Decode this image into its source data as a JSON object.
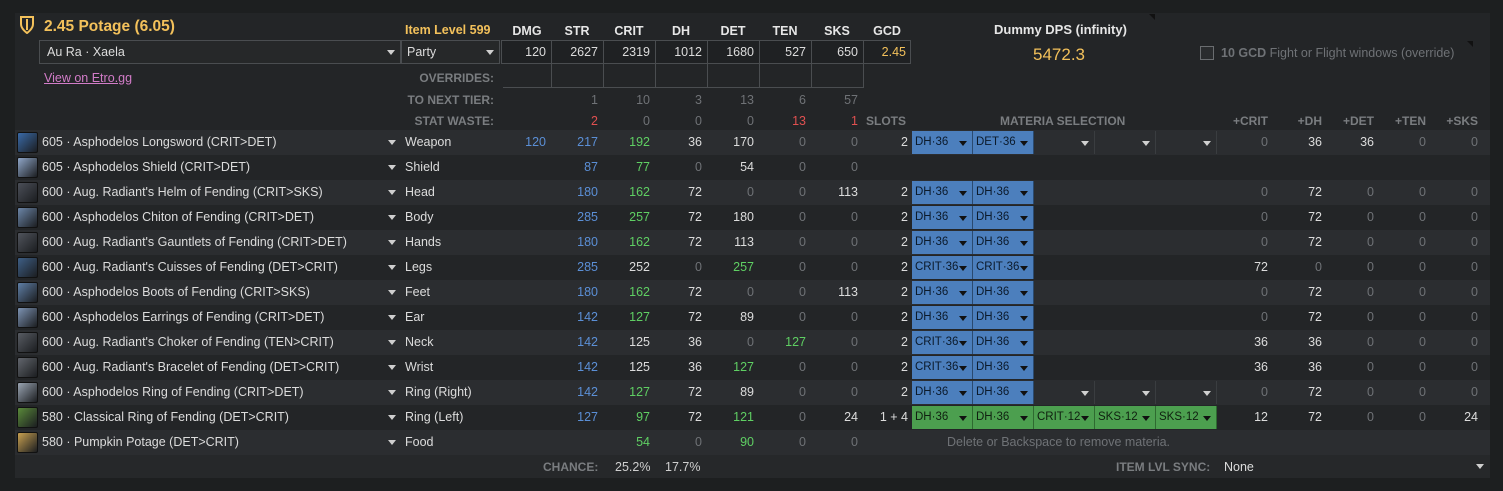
{
  "header": {
    "title": "2.45 Potage (6.05)",
    "race": "Au Ra · Xaela",
    "link": "View on Etro.gg",
    "item_level": "Item Level 599",
    "party": "Party",
    "stat_headers": [
      "DMG",
      "STR",
      "CRIT",
      "DH",
      "DET",
      "TEN",
      "SKS",
      "GCD"
    ],
    "totals": [
      "120",
      "2627",
      "2319",
      "1012",
      "1680",
      "527",
      "650",
      "2.45"
    ],
    "overrides_label": "OVERRIDES:",
    "next_tier_label": "TO NEXT TIER:",
    "next_tier": [
      "1",
      "10",
      "3",
      "13",
      "6",
      "57"
    ],
    "waste_label": "STAT WASTE:",
    "waste": [
      "2",
      "0",
      "0",
      "0",
      "13",
      "1"
    ],
    "slots_label": "SLOTS",
    "materia_label": "MATERIA SELECTION",
    "materia_headers": [
      "+CRIT",
      "+DH",
      "+DET",
      "+TEN",
      "+SKS"
    ]
  },
  "dps": {
    "title": "Dummy DPS (infinity)",
    "value": "5472.3",
    "gcd_label": "10 GCD",
    "gcd_desc": "Fight or Flight windows (override)"
  },
  "gear": [
    {
      "name": "605 · Asphodelos Longsword (CRIT>DET)",
      "slot": "Weapon",
      "dmg": "120",
      "str": "217",
      "crit": "192",
      "dh": "36",
      "det": "170",
      "ten": "0",
      "sks": "0",
      "slots": "2",
      "materia": [
        "DH·36",
        "DET·36",
        "",
        "",
        ""
      ],
      "mtype": [
        "blue",
        "blue",
        "empty",
        "empty",
        "empty"
      ],
      "plus": [
        "0",
        "36",
        "36",
        "0",
        "0"
      ],
      "icon": "#3a6aa8"
    },
    {
      "name": "605 · Asphodelos Shield (CRIT>DET)",
      "slot": "Shield",
      "dmg": "",
      "str": "87",
      "crit": "77",
      "dh": "0",
      "det": "54",
      "ten": "0",
      "sks": "0",
      "slots": "",
      "materia": [],
      "mtype": [],
      "plus": [],
      "icon": "#8fa6c8"
    },
    {
      "name": "600 · Aug. Radiant's Helm of Fending (CRIT>SKS)",
      "slot": "Head",
      "dmg": "",
      "str": "180",
      "crit": "162",
      "dh": "72",
      "det": "0",
      "ten": "0",
      "sks": "113",
      "slots": "2",
      "materia": [
        "DH·36",
        "DH·36"
      ],
      "mtype": [
        "blue",
        "blue"
      ],
      "plus": [
        "0",
        "72",
        "0",
        "0",
        "0"
      ],
      "icon": "#4b4f58"
    },
    {
      "name": "600 · Asphodelos Chiton of Fending (CRIT>DET)",
      "slot": "Body",
      "dmg": "",
      "str": "285",
      "crit": "257",
      "dh": "72",
      "det": "180",
      "ten": "0",
      "sks": "0",
      "slots": "2",
      "materia": [
        "DH·36",
        "DH·36"
      ],
      "mtype": [
        "blue",
        "blue"
      ],
      "plus": [
        "0",
        "72",
        "0",
        "0",
        "0"
      ],
      "icon": "#6c86a8"
    },
    {
      "name": "600 · Aug. Radiant's Gauntlets of Fending (CRIT>DET)",
      "slot": "Hands",
      "dmg": "",
      "str": "180",
      "crit": "162",
      "dh": "72",
      "det": "113",
      "ten": "0",
      "sks": "0",
      "slots": "2",
      "materia": [
        "DH·36",
        "DH·36"
      ],
      "mtype": [
        "blue",
        "blue"
      ],
      "plus": [
        "0",
        "72",
        "0",
        "0",
        "0"
      ],
      "icon": "#50545c"
    },
    {
      "name": "600 · Aug. Radiant's Cuisses of Fending (DET>CRIT)",
      "slot": "Legs",
      "dmg": "",
      "str": "285",
      "crit": "252",
      "dh": "0",
      "det": "257",
      "ten": "0",
      "sks": "0",
      "slots": "2",
      "materia": [
        "CRIT·36",
        "CRIT·36"
      ],
      "mtype": [
        "blue",
        "blue"
      ],
      "plus": [
        "72",
        "0",
        "0",
        "0",
        "0"
      ],
      "icon": "#3e5f86"
    },
    {
      "name": "600 · Asphodelos Boots of Fending (CRIT>SKS)",
      "slot": "Feet",
      "dmg": "",
      "str": "180",
      "crit": "162",
      "dh": "72",
      "det": "0",
      "ten": "0",
      "sks": "113",
      "slots": "2",
      "materia": [
        "DH·36",
        "DH·36"
      ],
      "mtype": [
        "blue",
        "blue"
      ],
      "plus": [
        "0",
        "72",
        "0",
        "0",
        "0"
      ],
      "icon": "#5f7fa6"
    },
    {
      "name": "600 · Asphodelos Earrings of Fending (CRIT>DET)",
      "slot": "Ear",
      "dmg": "",
      "str": "142",
      "crit": "127",
      "dh": "72",
      "det": "89",
      "ten": "0",
      "sks": "0",
      "slots": "2",
      "materia": [
        "DH·36",
        "DH·36"
      ],
      "mtype": [
        "blue",
        "blue"
      ],
      "plus": [
        "0",
        "72",
        "0",
        "0",
        "0"
      ],
      "icon": "#7d93b3"
    },
    {
      "name": "600 · Aug. Radiant's Choker of Fending (TEN>CRIT)",
      "slot": "Neck",
      "dmg": "",
      "str": "142",
      "crit": "125",
      "dh": "36",
      "det": "0",
      "ten": "127",
      "sks": "0",
      "slots": "2",
      "materia": [
        "CRIT·36",
        "DH·36"
      ],
      "mtype": [
        "blue",
        "blue"
      ],
      "plus": [
        "36",
        "36",
        "0",
        "0",
        "0"
      ],
      "icon": "#585c63"
    },
    {
      "name": "600 · Aug. Radiant's Bracelet of Fending (DET>CRIT)",
      "slot": "Wrist",
      "dmg": "",
      "str": "142",
      "crit": "125",
      "dh": "36",
      "det": "127",
      "ten": "0",
      "sks": "0",
      "slots": "2",
      "materia": [
        "CRIT·36",
        "DH·36"
      ],
      "mtype": [
        "blue",
        "blue"
      ],
      "plus": [
        "36",
        "36",
        "0",
        "0",
        "0"
      ],
      "icon": "#62666d"
    },
    {
      "name": "600 · Asphodelos Ring of Fending (CRIT>DET)",
      "slot": "Ring (Right)",
      "dmg": "",
      "str": "142",
      "crit": "127",
      "dh": "72",
      "det": "89",
      "ten": "0",
      "sks": "0",
      "slots": "2",
      "materia": [
        "DH·36",
        "DH·36",
        "",
        "",
        ""
      ],
      "mtype": [
        "blue",
        "blue",
        "empty",
        "empty",
        "empty"
      ],
      "plus": [
        "0",
        "72",
        "0",
        "0",
        "0"
      ],
      "icon": "#9aa5b3"
    },
    {
      "name": "580 · Classical Ring of Fending (DET>CRIT)",
      "slot": "Ring (Left)",
      "dmg": "",
      "str": "127",
      "crit": "97",
      "dh": "72",
      "det": "121",
      "ten": "0",
      "sks": "24",
      "slots": "1 + 4",
      "materia": [
        "DH·36",
        "DH·36",
        "CRIT·12",
        "SKS·12",
        "SKS·12"
      ],
      "mtype": [
        "green",
        "green",
        "green",
        "green",
        "green"
      ],
      "plus": [
        "12",
        "72",
        "0",
        "0",
        "24"
      ],
      "icon": "#5a8a3a"
    },
    {
      "name": "580 · Pumpkin Potage (DET>CRIT)",
      "slot": "Food",
      "dmg": "",
      "str": "",
      "crit": "54",
      "dh": "0",
      "det": "90",
      "ten": "0",
      "sks": "0",
      "slots": "",
      "materia": [],
      "mtype": [],
      "plus": [],
      "icon": "#c8a050"
    }
  ],
  "hint": "Delete or Backspace to remove materia.",
  "footer": {
    "chance_label": "CHANCE:",
    "chance_crit": "25.2%",
    "chance_dh": "17.7%",
    "sync_label": "ITEM LVL SYNC:",
    "sync_value": "None"
  },
  "colors": {
    "gold": "#f3c15b",
    "blue": "#5b8fd6",
    "green": "#5fcf63",
    "red": "#e05050",
    "muted": "#6f7276",
    "link": "#d27cc8"
  }
}
